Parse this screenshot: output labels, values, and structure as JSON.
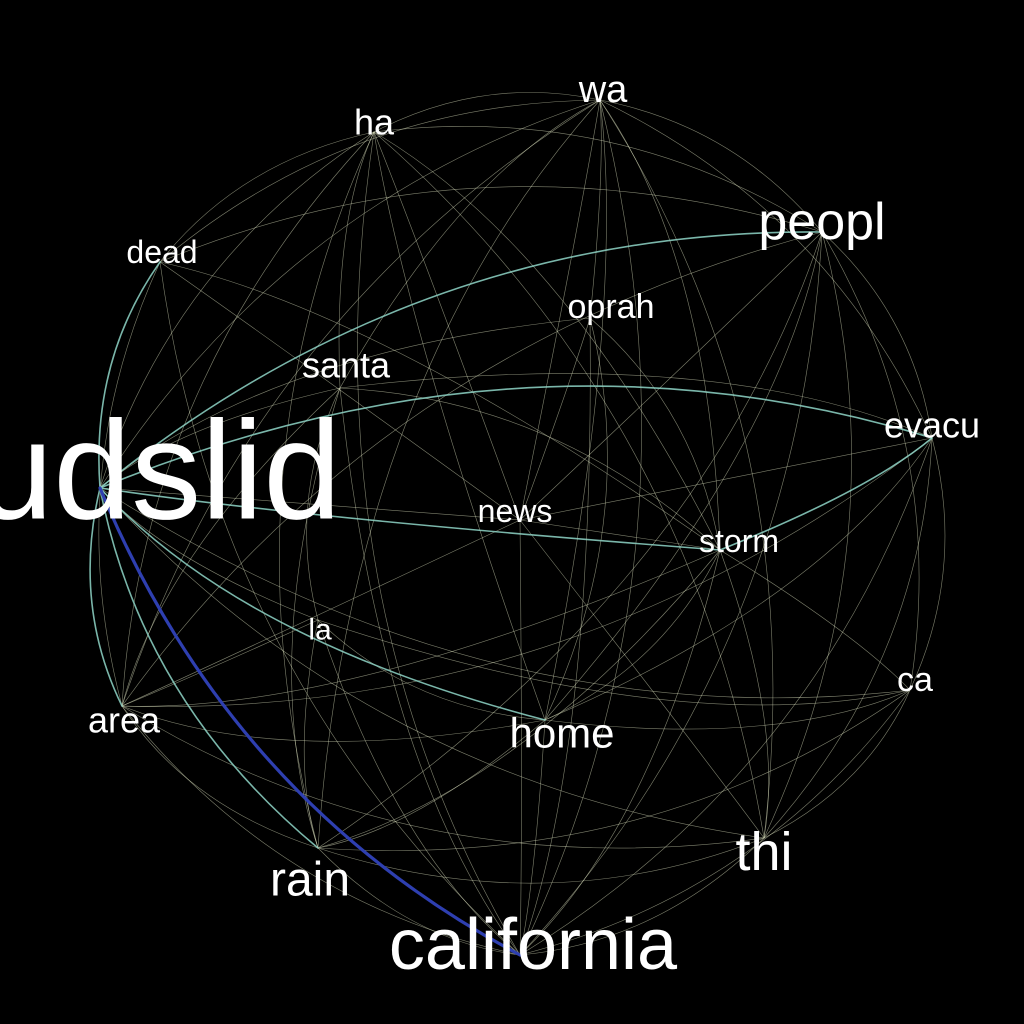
{
  "background": "#000000",
  "colors": {
    "word": "#ffffff",
    "edge_weak": "#e8ecc8",
    "edge_medium": "#8fd6c8",
    "edge_strong": "#2e3fb0"
  },
  "nodes": [
    {
      "id": "mudslid",
      "label": "mudslid"
    },
    {
      "id": "california",
      "label": "california"
    },
    {
      "id": "peopl",
      "label": "peopl"
    },
    {
      "id": "thi",
      "label": "thi"
    },
    {
      "id": "rain",
      "label": "rain"
    },
    {
      "id": "home",
      "label": "home"
    },
    {
      "id": "wa",
      "label": "wa"
    },
    {
      "id": "santa",
      "label": "santa"
    },
    {
      "id": "oprah",
      "label": "oprah"
    },
    {
      "id": "evacu",
      "label": "evacu"
    },
    {
      "id": "ha",
      "label": "ha"
    },
    {
      "id": "dead",
      "label": "dead"
    },
    {
      "id": "news",
      "label": "news"
    },
    {
      "id": "storm",
      "label": "storm"
    },
    {
      "id": "area",
      "label": "area"
    },
    {
      "id": "ca",
      "label": "ca"
    },
    {
      "id": "la",
      "label": "la"
    }
  ],
  "edges": [
    {
      "source": "mudslid",
      "target": "california",
      "strength": "strong"
    },
    {
      "source": "mudslid",
      "target": "rain",
      "strength": "medium"
    },
    {
      "source": "mudslid",
      "target": "dead",
      "strength": "medium"
    },
    {
      "source": "mudslid",
      "target": "peopl",
      "strength": "medium"
    },
    {
      "source": "mudslid",
      "target": "storm",
      "strength": "medium"
    },
    {
      "source": "mudslid",
      "target": "evacu",
      "strength": "medium"
    },
    {
      "source": "mudslid",
      "target": "home",
      "strength": "medium"
    },
    {
      "source": "mudslid",
      "target": "area",
      "strength": "medium"
    },
    {
      "source": "mudslid",
      "target": "wa",
      "strength": "weak"
    },
    {
      "source": "mudslid",
      "target": "ha",
      "strength": "weak"
    },
    {
      "source": "mudslid",
      "target": "santa",
      "strength": "weak"
    },
    {
      "source": "mudslid",
      "target": "oprah",
      "strength": "weak"
    },
    {
      "source": "mudslid",
      "target": "news",
      "strength": "weak"
    },
    {
      "source": "mudslid",
      "target": "thi",
      "strength": "weak"
    },
    {
      "source": "mudslid",
      "target": "ca",
      "strength": "weak"
    },
    {
      "source": "mudslid",
      "target": "la",
      "strength": "weak"
    },
    {
      "source": "california",
      "target": "peopl",
      "strength": "weak"
    },
    {
      "source": "california",
      "target": "thi",
      "strength": "weak"
    },
    {
      "source": "california",
      "target": "rain",
      "strength": "weak"
    },
    {
      "source": "california",
      "target": "home",
      "strength": "weak"
    },
    {
      "source": "california",
      "target": "wa",
      "strength": "weak"
    },
    {
      "source": "california",
      "target": "santa",
      "strength": "weak"
    },
    {
      "source": "california",
      "target": "oprah",
      "strength": "weak"
    },
    {
      "source": "california",
      "target": "evacu",
      "strength": "weak"
    },
    {
      "source": "california",
      "target": "ha",
      "strength": "weak"
    },
    {
      "source": "california",
      "target": "dead",
      "strength": "weak"
    },
    {
      "source": "california",
      "target": "news",
      "strength": "weak"
    },
    {
      "source": "california",
      "target": "storm",
      "strength": "weak"
    },
    {
      "source": "california",
      "target": "area",
      "strength": "weak"
    },
    {
      "source": "california",
      "target": "ca",
      "strength": "weak"
    },
    {
      "source": "california",
      "target": "la",
      "strength": "weak"
    },
    {
      "source": "peopl",
      "target": "evacu",
      "strength": "weak"
    },
    {
      "source": "peopl",
      "target": "wa",
      "strength": "weak"
    },
    {
      "source": "peopl",
      "target": "thi",
      "strength": "weak"
    },
    {
      "source": "peopl",
      "target": "home",
      "strength": "weak"
    },
    {
      "source": "peopl",
      "target": "news",
      "strength": "weak"
    },
    {
      "source": "peopl",
      "target": "dead",
      "strength": "weak"
    },
    {
      "source": "peopl",
      "target": "area",
      "strength": "weak"
    },
    {
      "source": "peopl",
      "target": "ca",
      "strength": "weak"
    },
    {
      "source": "peopl",
      "target": "ha",
      "strength": "weak"
    },
    {
      "source": "peopl",
      "target": "rain",
      "strength": "weak"
    },
    {
      "source": "thi",
      "target": "wa",
      "strength": "weak"
    },
    {
      "source": "thi",
      "target": "ha",
      "strength": "weak"
    },
    {
      "source": "thi",
      "target": "storm",
      "strength": "weak"
    },
    {
      "source": "thi",
      "target": "news",
      "strength": "weak"
    },
    {
      "source": "thi",
      "target": "evacu",
      "strength": "weak"
    },
    {
      "source": "thi",
      "target": "rain",
      "strength": "weak"
    },
    {
      "source": "thi",
      "target": "ca",
      "strength": "weak"
    },
    {
      "source": "thi",
      "target": "area",
      "strength": "weak"
    },
    {
      "source": "rain",
      "target": "storm",
      "strength": "weak"
    },
    {
      "source": "rain",
      "target": "wa",
      "strength": "weak"
    },
    {
      "source": "rain",
      "target": "ha",
      "strength": "weak"
    },
    {
      "source": "rain",
      "target": "santa",
      "strength": "weak"
    },
    {
      "source": "rain",
      "target": "ca",
      "strength": "weak"
    },
    {
      "source": "rain",
      "target": "home",
      "strength": "weak"
    },
    {
      "source": "rain",
      "target": "area",
      "strength": "weak"
    },
    {
      "source": "rain",
      "target": "la",
      "strength": "weak"
    },
    {
      "source": "home",
      "target": "evacu",
      "strength": "weak"
    },
    {
      "source": "home",
      "target": "wa",
      "strength": "weak"
    },
    {
      "source": "home",
      "target": "ha",
      "strength": "weak"
    },
    {
      "source": "home",
      "target": "area",
      "strength": "weak"
    },
    {
      "source": "home",
      "target": "storm",
      "strength": "weak"
    },
    {
      "source": "home",
      "target": "la",
      "strength": "weak"
    },
    {
      "source": "home",
      "target": "ca",
      "strength": "weak"
    },
    {
      "source": "wa",
      "target": "ha",
      "strength": "weak"
    },
    {
      "source": "wa",
      "target": "dead",
      "strength": "weak"
    },
    {
      "source": "wa",
      "target": "oprah",
      "strength": "weak"
    },
    {
      "source": "wa",
      "target": "news",
      "strength": "weak"
    },
    {
      "source": "wa",
      "target": "storm",
      "strength": "weak"
    },
    {
      "source": "wa",
      "target": "area",
      "strength": "weak"
    },
    {
      "source": "wa",
      "target": "evacu",
      "strength": "weak"
    },
    {
      "source": "wa",
      "target": "santa",
      "strength": "weak"
    },
    {
      "source": "ha",
      "target": "dead",
      "strength": "weak"
    },
    {
      "source": "ha",
      "target": "news",
      "strength": "weak"
    },
    {
      "source": "ha",
      "target": "storm",
      "strength": "weak"
    },
    {
      "source": "ha",
      "target": "area",
      "strength": "weak"
    },
    {
      "source": "ha",
      "target": "santa",
      "strength": "weak"
    },
    {
      "source": "santa",
      "target": "storm",
      "strength": "weak"
    },
    {
      "source": "santa",
      "target": "la",
      "strength": "weak"
    },
    {
      "source": "santa",
      "target": "area",
      "strength": "weak"
    },
    {
      "source": "santa",
      "target": "evacu",
      "strength": "weak"
    },
    {
      "source": "oprah",
      "target": "news",
      "strength": "weak"
    },
    {
      "source": "oprah",
      "target": "home",
      "strength": "weak"
    },
    {
      "source": "oprah",
      "target": "storm",
      "strength": "weak"
    },
    {
      "source": "evacu",
      "target": "storm",
      "strength": "medium"
    },
    {
      "source": "evacu",
      "target": "ca",
      "strength": "weak"
    },
    {
      "source": "evacu",
      "target": "area",
      "strength": "weak"
    },
    {
      "source": "evacu",
      "target": "news",
      "strength": "weak"
    },
    {
      "source": "dead",
      "target": "area",
      "strength": "weak"
    },
    {
      "source": "dead",
      "target": "storm",
      "strength": "weak"
    },
    {
      "source": "dead",
      "target": "news",
      "strength": "weak"
    },
    {
      "source": "news",
      "target": "storm",
      "strength": "weak"
    },
    {
      "source": "news",
      "target": "area",
      "strength": "weak"
    },
    {
      "source": "storm",
      "target": "ca",
      "strength": "weak"
    },
    {
      "source": "storm",
      "target": "area",
      "strength": "weak"
    },
    {
      "source": "area",
      "target": "la",
      "strength": "weak"
    },
    {
      "source": "ca",
      "target": "la",
      "strength": "weak"
    }
  ]
}
